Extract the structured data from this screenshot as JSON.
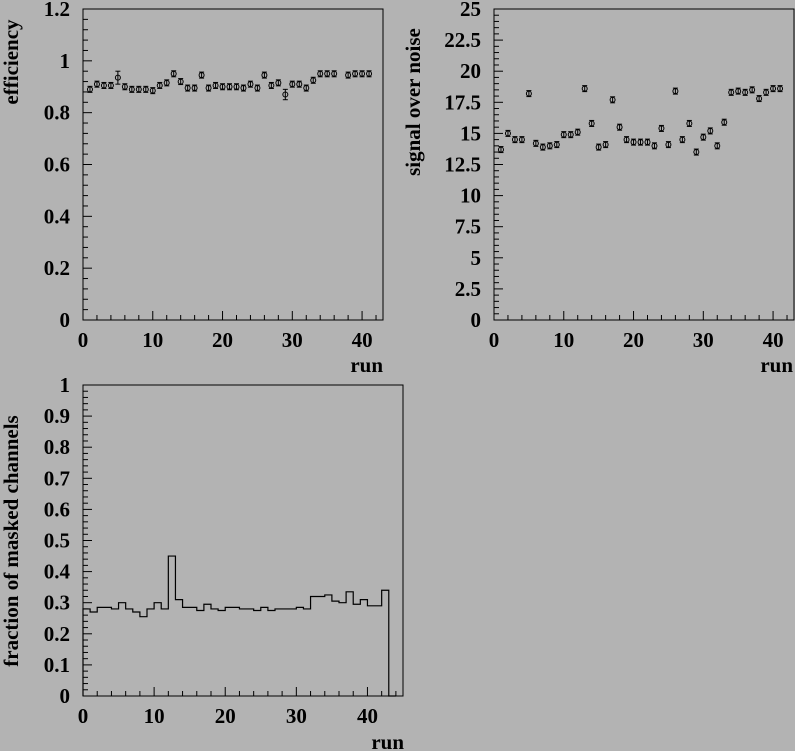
{
  "colors": {
    "background": "#b3b3b3",
    "ink": "#000000"
  },
  "chart_data": [
    {
      "id": "efficiency",
      "type": "scatter",
      "title": "",
      "xlabel": "run",
      "ylabel": "efficiency",
      "xlim": [
        0,
        43
      ],
      "ylim": [
        0,
        1.2
      ],
      "xticks": [
        "0",
        "10",
        "20",
        "30",
        "40"
      ],
      "yticks": [
        "0",
        "0.2",
        "0.4",
        "0.6",
        "0.8",
        "1",
        "1.2"
      ],
      "grid": false,
      "legend": "none",
      "x": [
        1,
        2,
        3,
        4,
        5,
        6,
        7,
        8,
        9,
        10,
        11,
        12,
        13,
        14,
        15,
        16,
        17,
        18,
        19,
        20,
        21,
        22,
        23,
        24,
        25,
        26,
        27,
        28,
        29,
        30,
        31,
        32,
        33,
        34,
        35,
        36,
        38,
        39,
        40,
        41
      ],
      "y": [
        0.89,
        0.91,
        0.905,
        0.905,
        0.935,
        0.9,
        0.89,
        0.89,
        0.89,
        0.885,
        0.905,
        0.915,
        0.95,
        0.92,
        0.895,
        0.895,
        0.945,
        0.895,
        0.905,
        0.9,
        0.9,
        0.9,
        0.895,
        0.91,
        0.895,
        0.945,
        0.905,
        0.915,
        0.87,
        0.91,
        0.91,
        0.895,
        0.925,
        0.95,
        0.95,
        0.95,
        0.945,
        0.95,
        0.95,
        0.95
      ],
      "yerr": [
        0.01,
        0.01,
        0.01,
        0.01,
        0.025,
        0.01,
        0.01,
        0.01,
        0.01,
        0.01,
        0.01,
        0.01,
        0.01,
        0.01,
        0.01,
        0.01,
        0.01,
        0.01,
        0.01,
        0.01,
        0.01,
        0.01,
        0.01,
        0.01,
        0.01,
        0.01,
        0.01,
        0.01,
        0.02,
        0.01,
        0.01,
        0.01,
        0.01,
        0.01,
        0.01,
        0.01,
        0.01,
        0.01,
        0.01,
        0.01
      ]
    },
    {
      "id": "signal-over-noise",
      "type": "scatter",
      "title": "",
      "xlabel": "run",
      "ylabel": "signal over noise",
      "xlim": [
        0,
        43
      ],
      "ylim": [
        0,
        25
      ],
      "xticks": [
        "0",
        "10",
        "20",
        "30",
        "40"
      ],
      "yticks": [
        "0",
        "2.5",
        "5",
        "7.5",
        "10",
        "12.5",
        "15",
        "17.5",
        "20",
        "22.5",
        "25"
      ],
      "grid": false,
      "legend": "none",
      "x": [
        1,
        2,
        3,
        4,
        5,
        6,
        7,
        8,
        9,
        10,
        11,
        12,
        13,
        14,
        15,
        16,
        17,
        18,
        19,
        20,
        21,
        22,
        23,
        24,
        25,
        26,
        27,
        28,
        29,
        30,
        31,
        32,
        33,
        34,
        35,
        36,
        37,
        38,
        39,
        40,
        41
      ],
      "y": [
        13.7,
        15.0,
        14.5,
        14.5,
        18.2,
        14.2,
        13.9,
        14.0,
        14.1,
        14.9,
        14.9,
        15.1,
        18.6,
        15.8,
        13.9,
        14.1,
        17.7,
        15.5,
        14.5,
        14.3,
        14.3,
        14.3,
        14.0,
        15.4,
        14.1,
        18.4,
        14.5,
        15.8,
        13.5,
        14.7,
        15.2,
        14.0,
        15.9,
        18.3,
        18.4,
        18.3,
        18.5,
        17.8,
        18.3,
        18.6,
        18.6
      ]
    },
    {
      "id": "masked-channels",
      "type": "bar",
      "title": "",
      "xlabel": "run",
      "ylabel": "fraction of masked channels",
      "xlim": [
        0,
        45
      ],
      "ylim": [
        0,
        1
      ],
      "xticks": [
        "0",
        "10",
        "20",
        "30",
        "40"
      ],
      "yticks": [
        "0",
        "0.1",
        "0.2",
        "0.3",
        "0.4",
        "0.5",
        "0.6",
        "0.7",
        "0.8",
        "0.9",
        "1"
      ],
      "grid": false,
      "legend": "none",
      "bin_edges": [
        0,
        1,
        2,
        3,
        4,
        5,
        6,
        7,
        8,
        9,
        10,
        11,
        12,
        13,
        14,
        15,
        16,
        17,
        18,
        19,
        20,
        21,
        22,
        23,
        24,
        25,
        26,
        27,
        28,
        29,
        30,
        31,
        32,
        33,
        34,
        35,
        36,
        37,
        38,
        39,
        40,
        41,
        42,
        43,
        44
      ],
      "values": [
        0.28,
        0.27,
        0.285,
        0.285,
        0.28,
        0.3,
        0.28,
        0.27,
        0.255,
        0.28,
        0.3,
        0.28,
        0.45,
        0.31,
        0.285,
        0.285,
        0.275,
        0.295,
        0.28,
        0.275,
        0.285,
        0.285,
        0.28,
        0.28,
        0.275,
        0.285,
        0.275,
        0.28,
        0.28,
        0.28,
        0.285,
        0.28,
        0.32,
        0.32,
        0.325,
        0.305,
        0.3,
        0.335,
        0.295,
        0.31,
        0.29,
        0.29,
        0.34,
        0.0
      ]
    }
  ]
}
